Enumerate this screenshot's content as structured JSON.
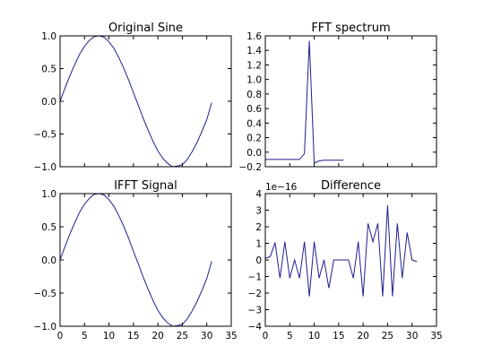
{
  "chart_data": [
    {
      "type": "line",
      "title": "Original Sine",
      "xlim": [
        0,
        35
      ],
      "ylim": [
        -1.0,
        1.0
      ],
      "xticks": [],
      "yticks": [
        "1.0",
        "0.5",
        "0.0",
        "−0.5",
        "−1.0"
      ],
      "ytick_values": [
        1.0,
        0.5,
        0.0,
        -0.5,
        -1.0
      ],
      "series": [
        {
          "color": "#1f1f8f",
          "x": [
            0,
            1,
            2,
            3,
            4,
            5,
            6,
            7,
            8,
            9,
            10,
            11,
            12,
            13,
            14,
            15,
            16,
            17,
            18,
            19,
            20,
            21,
            22,
            23,
            24,
            25,
            26,
            27,
            28,
            29,
            30,
            31
          ],
          "y": [
            0.0,
            0.2,
            0.39,
            0.56,
            0.72,
            0.84,
            0.93,
            0.99,
            1.0,
            0.98,
            0.91,
            0.81,
            0.67,
            0.51,
            0.33,
            0.13,
            -0.06,
            -0.26,
            -0.44,
            -0.61,
            -0.76,
            -0.87,
            -0.95,
            -1.0,
            -0.99,
            -0.97,
            -0.89,
            -0.77,
            -0.63,
            -0.46,
            -0.28,
            -0.02
          ]
        }
      ]
    },
    {
      "type": "line",
      "title": "FFT spectrum",
      "xlim": [
        0,
        35
      ],
      "ylim": [
        -0.2,
        1.6
      ],
      "xticks": [],
      "yticks": [
        "1.6",
        "1.4",
        "1.2",
        "1.0",
        "0.8",
        "0.6",
        "0.4",
        "0.2",
        "0.0",
        "−0.2"
      ],
      "ytick_values": [
        1.6,
        1.4,
        1.2,
        1.0,
        0.8,
        0.6,
        0.4,
        0.2,
        0.0,
        -0.2
      ],
      "series": [
        {
          "color": "#1f1f8f",
          "x": [
            0,
            1,
            2,
            3,
            4,
            5,
            6,
            7,
            8,
            9,
            10,
            11,
            12,
            13,
            14,
            15,
            16
          ],
          "y": [
            -0.1,
            -0.1,
            -0.1,
            -0.1,
            -0.1,
            -0.1,
            -0.1,
            -0.1,
            -0.02,
            1.53,
            -0.15,
            -0.12,
            -0.11,
            -0.11,
            -0.11,
            -0.11,
            -0.11
          ]
        }
      ]
    },
    {
      "type": "line",
      "title": "IFFT Signal",
      "xlim": [
        0,
        35
      ],
      "ylim": [
        -1.0,
        1.0
      ],
      "xticks": [
        "0",
        "5",
        "10",
        "15",
        "20",
        "25",
        "30",
        "35"
      ],
      "xtick_values": [
        0,
        5,
        10,
        15,
        20,
        25,
        30,
        35
      ],
      "yticks": [
        "1.0",
        "0.5",
        "0.0",
        "−0.5",
        "−1.0"
      ],
      "ytick_values": [
        1.0,
        0.5,
        0.0,
        -0.5,
        -1.0
      ],
      "series": [
        {
          "color": "#1f1f8f",
          "x": [
            0,
            1,
            2,
            3,
            4,
            5,
            6,
            7,
            8,
            9,
            10,
            11,
            12,
            13,
            14,
            15,
            16,
            17,
            18,
            19,
            20,
            21,
            22,
            23,
            24,
            25,
            26,
            27,
            28,
            29,
            30,
            31
          ],
          "y": [
            0.0,
            0.2,
            0.39,
            0.56,
            0.72,
            0.84,
            0.93,
            0.99,
            1.0,
            0.98,
            0.91,
            0.81,
            0.67,
            0.51,
            0.33,
            0.13,
            -0.06,
            -0.26,
            -0.44,
            -0.61,
            -0.76,
            -0.87,
            -0.95,
            -1.0,
            -0.99,
            -0.97,
            -0.89,
            -0.77,
            -0.63,
            -0.46,
            -0.28,
            -0.02
          ]
        }
      ]
    },
    {
      "type": "line",
      "title": "Difference",
      "offset_text": "1e−16",
      "xlim": [
        0,
        35
      ],
      "ylim": [
        -4,
        4
      ],
      "xticks": [
        "0",
        "5",
        "10",
        "15",
        "20",
        "25",
        "30",
        "35"
      ],
      "xtick_values": [
        0,
        5,
        10,
        15,
        20,
        25,
        30,
        35
      ],
      "yticks": [
        "4",
        "3",
        "2",
        "1",
        "0",
        "−1",
        "−2",
        "−3",
        "−4"
      ],
      "ytick_values": [
        4,
        3,
        2,
        1,
        0,
        -1,
        -2,
        -3,
        -4
      ],
      "series": [
        {
          "color": "#1f1f8f",
          "x": [
            0,
            1,
            2,
            3,
            4,
            5,
            6,
            7,
            8,
            9,
            10,
            11,
            12,
            13,
            14,
            15,
            16,
            17,
            18,
            19,
            20,
            21,
            22,
            23,
            24,
            25,
            26,
            27,
            28,
            29,
            30,
            31
          ],
          "y": [
            0.1,
            0.2,
            1.05,
            -1.1,
            1.1,
            -1.1,
            0.0,
            -1.1,
            1.1,
            -2.2,
            1.1,
            -1.1,
            0.0,
            -1.7,
            0.0,
            0.0,
            0.0,
            0.0,
            -1.1,
            1.1,
            -2.2,
            2.2,
            1.1,
            2.2,
            -2.2,
            3.3,
            -2.2,
            2.2,
            -1.1,
            1.65,
            0.0,
            -0.1
          ]
        }
      ]
    }
  ]
}
